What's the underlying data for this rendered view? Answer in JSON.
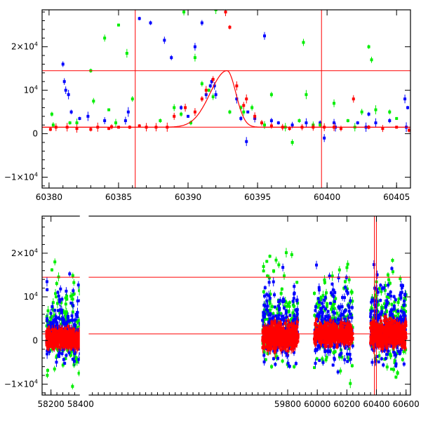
{
  "chart_data": [
    {
      "type": "scatter",
      "panel": "top",
      "xlim": [
        60379.5,
        60406
      ],
      "ylim": [
        -12500,
        28500
      ],
      "x_ticks": [
        60380,
        60385,
        60390,
        60395,
        60400,
        60405
      ],
      "x_tick_labels": [
        "60380",
        "60385",
        "60390",
        "60395",
        "60400",
        "60405"
      ],
      "y_ticks": [
        -10000,
        0,
        10000,
        20000
      ],
      "y_tick_labels": [
        {
          "base": "−1×10",
          "exp": "4"
        },
        {
          "base": "0",
          "exp": ""
        },
        {
          "base": "10",
          "exp": "4"
        },
        {
          "base": "2×10",
          "exp": "4"
        }
      ],
      "hlines": [
        14500,
        1500
      ],
      "vlines": [
        60386.2,
        60399.6
      ],
      "model_curve": {
        "color": "#ff0000",
        "baseline": 1500,
        "peak": 14500,
        "t0": 60392.8,
        "width_left": 1.7,
        "width_right": 0.9
      },
      "series": [
        {
          "color": "#0000ff",
          "points": [
            [
              60381.0,
              16000
            ],
            [
              60381.1,
              12000
            ],
            [
              60381.2,
              10000
            ],
            [
              60381.4,
              9000
            ],
            [
              60381.6,
              5000
            ],
            [
              60382.2,
              3500
            ],
            [
              60382.8,
              4000
            ],
            [
              60384.0,
              3000
            ],
            [
              60385.5,
              3000
            ],
            [
              60385.7,
              5000
            ],
            [
              60386.5,
              26500
            ],
            [
              60387.3,
              25500
            ],
            [
              60388.3,
              21500
            ],
            [
              60388.8,
              17500
            ],
            [
              60389.5,
              6000
            ],
            [
              60390.0,
              4000
            ],
            [
              60390.5,
              20000
            ],
            [
              60391.0,
              25500
            ],
            [
              60391.3,
              9000
            ],
            [
              60391.6,
              11000
            ],
            [
              60391.7,
              12000
            ],
            [
              60391.9,
              11000
            ],
            [
              60392.0,
              9000
            ],
            [
              60393.5,
              8000
            ],
            [
              60393.8,
              3500
            ],
            [
              60394.3,
              5000
            ],
            [
              60394.8,
              3500
            ],
            [
              60395.5,
              22500
            ],
            [
              60396.0,
              3000
            ],
            [
              60396.5,
              2500
            ],
            [
              60397.5,
              2000
            ],
            [
              60398.5,
              2500
            ],
            [
              60399.5,
              2500
            ],
            [
              60400.5,
              2500
            ],
            [
              60400.6,
              1500
            ],
            [
              60402.2,
              2500
            ],
            [
              60402.8,
              1500
            ],
            [
              60403.0,
              4500
            ],
            [
              60403.5,
              2500
            ],
            [
              60404.5,
              3000
            ],
            [
              60405.6,
              8000
            ],
            [
              60405.8,
              6000
            ],
            [
              60394.2,
              -1800
            ],
            [
              60405.7,
              1500
            ],
            [
              60399.8,
              -1000
            ]
          ]
        },
        {
          "color": "#00ee00",
          "points": [
            [
              60380.2,
              4500
            ],
            [
              60380.3,
              2000
            ],
            [
              60381.5,
              2500
            ],
            [
              60382.0,
              2500
            ],
            [
              60383.0,
              14500
            ],
            [
              60383.2,
              7500
            ],
            [
              60384.0,
              22000
            ],
            [
              60384.3,
              5500
            ],
            [
              60384.8,
              2500
            ],
            [
              60385.0,
              25000
            ],
            [
              60385.6,
              18500
            ],
            [
              60386.0,
              8000
            ],
            [
              60388.0,
              3000
            ],
            [
              60389.0,
              6000
            ],
            [
              60389.5,
              4500
            ],
            [
              60389.7,
              28000
            ],
            [
              60390.2,
              2500
            ],
            [
              60390.5,
              17500
            ],
            [
              60391.0,
              11500
            ],
            [
              60391.5,
              10000
            ],
            [
              60391.8,
              8500
            ],
            [
              60392.0,
              28500
            ],
            [
              60393.0,
              5000
            ],
            [
              60393.8,
              6000
            ],
            [
              60394.0,
              5000
            ],
            [
              60394.6,
              6000
            ],
            [
              60395.5,
              2000
            ],
            [
              60396.0,
              9000
            ],
            [
              60397.0,
              1500
            ],
            [
              60397.5,
              -2000
            ],
            [
              60398.0,
              3000
            ],
            [
              60398.3,
              21000
            ],
            [
              60399.0,
              2000
            ],
            [
              60399.5,
              2000
            ],
            [
              60400.5,
              7000
            ],
            [
              60402.0,
              1500
            ],
            [
              60402.5,
              5000
            ],
            [
              60403.0,
              20000
            ],
            [
              60403.2,
              17000
            ],
            [
              60403.5,
              5500
            ],
            [
              60404.5,
              5000
            ],
            [
              60405.0,
              3500
            ],
            [
              60398.5,
              9000
            ],
            [
              60401.5,
              3000
            ]
          ]
        },
        {
          "color": "#ff0000",
          "points": [
            [
              60380.1,
              1000
            ],
            [
              60380.5,
              1500
            ],
            [
              60381.3,
              1500
            ],
            [
              60382.0,
              1200
            ],
            [
              60383.0,
              1000
            ],
            [
              60383.5,
              1500
            ],
            [
              60384.3,
              1200
            ],
            [
              60385.0,
              1500
            ],
            [
              60385.8,
              1500
            ],
            [
              60386.5,
              1800
            ],
            [
              60387.0,
              1500
            ],
            [
              60387.7,
              1500
            ],
            [
              60388.5,
              1500
            ],
            [
              60389.0,
              4000
            ],
            [
              60389.8,
              6000
            ],
            [
              60390.5,
              5000
            ],
            [
              60391.0,
              8000
            ],
            [
              60391.3,
              10000
            ],
            [
              60391.8,
              12500
            ],
            [
              60392.7,
              28000
            ],
            [
              60393.0,
              24500
            ],
            [
              60393.5,
              11000
            ],
            [
              60394.0,
              6500
            ],
            [
              60394.2,
              8000
            ],
            [
              60394.8,
              4000
            ],
            [
              60395.3,
              2500
            ],
            [
              60396.0,
              1800
            ],
            [
              60396.8,
              1500
            ],
            [
              60397.3,
              1200
            ],
            [
              60398.2,
              1500
            ],
            [
              60399.0,
              1500
            ],
            [
              60399.8,
              1500
            ],
            [
              60400.5,
              1500
            ],
            [
              60401.0,
              1200
            ],
            [
              60401.9,
              8000
            ],
            [
              60403.0,
              1500
            ],
            [
              60404.0,
              1200
            ],
            [
              60405.0,
              1500
            ],
            [
              60405.9,
              800
            ],
            [
              60384.5,
              1600
            ]
          ]
        }
      ]
    },
    {
      "type": "scatter",
      "panel": "bottom",
      "xlim": [
        58140,
        60630
      ],
      "ylim": [
        -12500,
        28500
      ],
      "x_ticks": [
        58200,
        58400,
        59800,
        60000,
        60200,
        60400,
        60600
      ],
      "x_tick_labels": [
        "58200",
        "58400",
        "59800",
        "60000",
        "60200",
        "60400",
        "60600"
      ],
      "y_ticks": [
        -10000,
        0,
        10000,
        20000
      ],
      "y_tick_labels": [
        {
          "base": "−1×10",
          "exp": "4"
        },
        {
          "base": "0",
          "exp": ""
        },
        {
          "base": "10",
          "exp": "4"
        },
        {
          "base": "2×10",
          "exp": "4"
        }
      ],
      "hlines": [
        14500,
        1500
      ],
      "vlines": [
        60386.2,
        60399.6
      ],
      "season_gaps": [
        [
          58390,
          58460
        ],
        [
          59610,
          59650
        ],
        [
          59720,
          59760
        ],
        [
          59865,
          59975
        ],
        [
          60240,
          60350
        ]
      ],
      "seasons": [
        {
          "x_range": [
            58170,
            58410
          ],
          "base": 500,
          "red_spread": 4000,
          "blue_spread": 9000,
          "green_spread": 12000
        },
        {
          "x_range": [
            59630,
            59870
          ],
          "base": 1000,
          "red_spread": 6000,
          "blue_spread": 10000,
          "green_spread": 13000
        },
        {
          "x_range": [
            59980,
            60240
          ],
          "base": 1500,
          "red_spread": 5000,
          "blue_spread": 11000,
          "green_spread": 13000
        },
        {
          "x_range": [
            60360,
            60600
          ],
          "base": 1500,
          "red_spread": 6000,
          "blue_spread": 11000,
          "green_spread": 13000
        }
      ],
      "series_colors": [
        "#00ee00",
        "#0000ff",
        "#ff0000"
      ]
    }
  ]
}
